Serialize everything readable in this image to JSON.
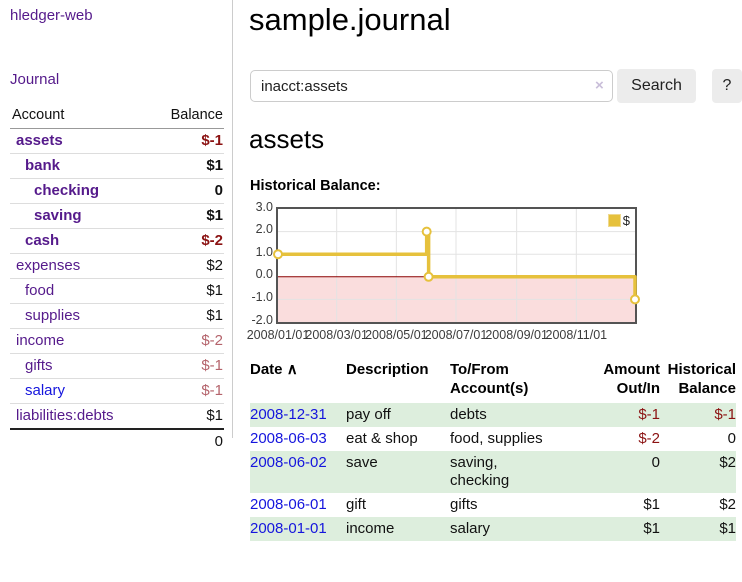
{
  "app": {
    "title": "hledger-web",
    "nav": {
      "journal_label": "Journal"
    }
  },
  "sidebar": {
    "header": {
      "account": "Account",
      "balance": "Balance"
    },
    "accounts": [
      {
        "name": "assets",
        "indent": 0,
        "bold": true,
        "link_color": "purple",
        "balance": "$-1",
        "balance_style": "bal-neg-strong"
      },
      {
        "name": "bank",
        "indent": 1,
        "bold": true,
        "link_color": "purple",
        "balance": "$1",
        "balance_style": "bal-pos-strong"
      },
      {
        "name": "checking",
        "indent": 2,
        "bold": true,
        "link_color": "purple",
        "balance": "0",
        "balance_style": "bal-pos-strong"
      },
      {
        "name": "saving",
        "indent": 2,
        "bold": true,
        "link_color": "purple",
        "balance": "$1",
        "balance_style": "bal-pos-strong"
      },
      {
        "name": "cash",
        "indent": 1,
        "bold": true,
        "link_color": "purple",
        "balance": "$-2",
        "balance_style": "bal-neg-strong"
      },
      {
        "name": "expenses",
        "indent": 0,
        "bold": false,
        "link_color": "purple",
        "balance": "$2",
        "balance_style": "bal-pos"
      },
      {
        "name": "food",
        "indent": 1,
        "bold": false,
        "link_color": "purple",
        "balance": "$1",
        "balance_style": "bal-pos"
      },
      {
        "name": "supplies",
        "indent": 1,
        "bold": false,
        "link_color": "purple",
        "balance": "$1",
        "balance_style": "bal-pos"
      },
      {
        "name": "income",
        "indent": 0,
        "bold": false,
        "link_color": "purple",
        "balance": "$-2",
        "balance_style": "bal-neg-soft"
      },
      {
        "name": "gifts",
        "indent": 1,
        "bold": false,
        "link_color": "purple",
        "balance": "$-1",
        "balance_style": "bal-neg-soft"
      },
      {
        "name": "salary",
        "indent": 1,
        "bold": false,
        "link_color": "blue",
        "balance": "$-1",
        "balance_style": "bal-neg-soft"
      },
      {
        "name": "liabilities:debts",
        "indent": 0,
        "bold": false,
        "link_color": "purple",
        "balance": "$1",
        "balance_style": "bal-pos"
      }
    ],
    "total": "0"
  },
  "header": {
    "title": "sample.journal"
  },
  "search": {
    "value": "inacct:assets",
    "clear_icon": "×",
    "button_label": "Search",
    "help_label": "?"
  },
  "main": {
    "account_title": "assets",
    "chart_label": "Historical Balance:"
  },
  "chart_data": {
    "type": "line",
    "subtype": "step",
    "title": "Historical Balance:",
    "series": [
      {
        "name": "$",
        "color": "#e6c13c",
        "points": [
          [
            "2008-01-01",
            1.0
          ],
          [
            "2008-06-01",
            2.0
          ],
          [
            "2008-06-03",
            0.0
          ],
          [
            "2008-12-31",
            -1.0
          ]
        ]
      }
    ],
    "x_range": [
      "2008-01-01",
      "2008-12-31"
    ],
    "ylim": [
      -2.0,
      3.0
    ],
    "y_ticks": [
      "3.0",
      "2.0",
      "1.0",
      "0.0",
      "-1.0",
      "-2.0"
    ],
    "x_ticks": [
      "2008/01/01",
      "2008/03/01",
      "2008/05/01",
      "2008/07/01",
      "2008/09/01",
      "2008/11/01"
    ],
    "grid": true,
    "legend_position": "top-right",
    "legend_label": "$",
    "negative_region_fill": "#fadddd",
    "zero_line_color": "#8b0000",
    "gridline_color": "#e3e3e3",
    "border_color": "#545454"
  },
  "register": {
    "headers": {
      "date": "Date",
      "sort_icon": "∧",
      "description": "Description",
      "accounts": "To/From\nAccount(s)",
      "amount": "Amount\nOut/In",
      "balance": "Historical\nBalance"
    },
    "rows": [
      {
        "date": "2008-12-31",
        "description": "pay off",
        "accounts": "debts",
        "amount": "$-1",
        "amount_neg": true,
        "balance": "$-1",
        "balance_neg": true,
        "shade": true
      },
      {
        "date": "2008-06-03",
        "description": "eat & shop",
        "accounts": "food, supplies",
        "amount": "$-2",
        "amount_neg": true,
        "balance": "0",
        "balance_neg": false,
        "shade": false
      },
      {
        "date": "2008-06-02",
        "description": "save",
        "accounts": "saving,\nchecking",
        "amount": "0",
        "amount_neg": false,
        "balance": "$2",
        "balance_neg": false,
        "shade": true
      },
      {
        "date": "2008-06-01",
        "description": "gift",
        "accounts": "gifts",
        "amount": "$1",
        "amount_neg": false,
        "balance": "$2",
        "balance_neg": false,
        "shade": false
      },
      {
        "date": "2008-01-01",
        "description": "income",
        "accounts": "salary",
        "amount": "$1",
        "amount_neg": false,
        "balance": "$1",
        "balance_neg": false,
        "shade": true
      }
    ]
  },
  "colors": {
    "link_purple": "#551a8b",
    "link_blue": "#1515dd",
    "negative_strong": "#8b1212",
    "negative_soft": "#b4636b",
    "row_green": "#ddeedd",
    "chart_gold": "#e6c13c",
    "chart_negative_fill": "#fadddd",
    "zero_line": "#8b0000",
    "button_gray": "#ececec"
  }
}
